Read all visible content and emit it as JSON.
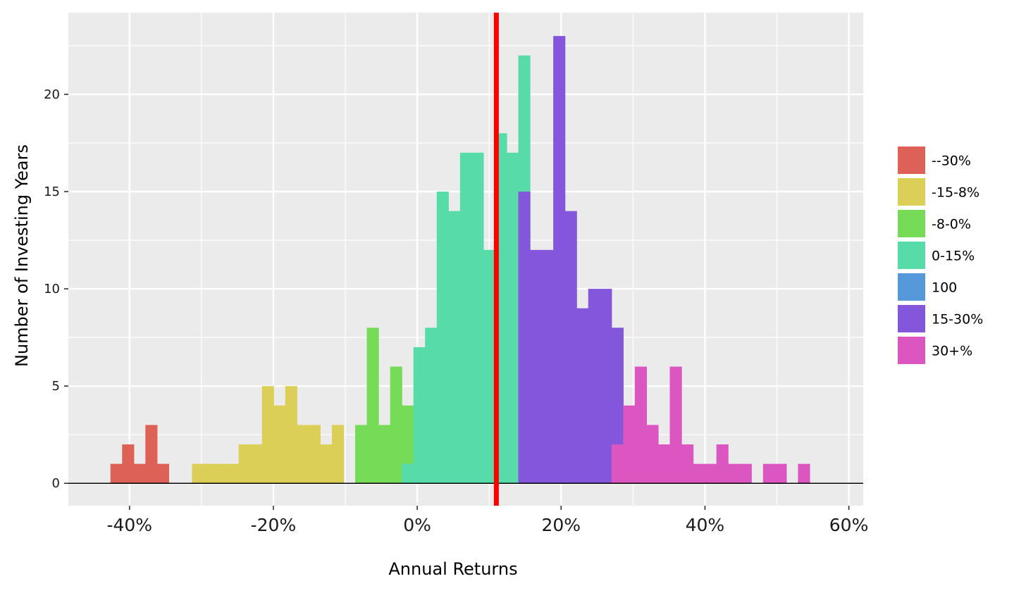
{
  "chart_data": {
    "type": "bar",
    "subtype": "stacked-histogram",
    "xlabel": "Annual Returns",
    "ylabel": "Number of Investing Years",
    "x_range": [
      -48.5,
      62
    ],
    "y_range": [
      -1.15,
      24.2
    ],
    "x_ticks": [
      {
        "value": -40,
        "label": "-40%"
      },
      {
        "value": -20,
        "label": "-20%"
      },
      {
        "value": 0,
        "label": "0%"
      },
      {
        "value": 20,
        "label": "20%"
      },
      {
        "value": 40,
        "label": "40%"
      },
      {
        "value": 60,
        "label": "60%"
      }
    ],
    "y_ticks": [
      {
        "value": 0,
        "label": "0"
      },
      {
        "value": 5,
        "label": "5"
      },
      {
        "value": 10,
        "label": "10"
      },
      {
        "value": 15,
        "label": "15"
      },
      {
        "value": 20,
        "label": "20"
      }
    ],
    "grid": true,
    "background": "#EBEBEB",
    "bin_width": 1.62,
    "first_bin_left": -42.65,
    "reference_line": {
      "x": 11.0,
      "color": "#FF0000"
    },
    "legend_position": "right",
    "series": [
      {
        "name": "--30%",
        "color": "#DD6157",
        "start_bin": 0,
        "values": [
          1,
          2,
          1,
          3,
          1
        ]
      },
      {
        "name": "-15-8%",
        "color": "#DBCF58",
        "start_bin": 7,
        "values": [
          1,
          1,
          1,
          1,
          2,
          2,
          5,
          4,
          5,
          3,
          3,
          2,
          3
        ]
      },
      {
        "name": "-8-0%",
        "color": "#76DB57",
        "start_bin": 21,
        "values": [
          3,
          8,
          3,
          6,
          4
        ]
      },
      {
        "name": "0-15%",
        "color": "#56DBA9",
        "start_bin": 25,
        "values": [
          1,
          7,
          8,
          15,
          14,
          17,
          17,
          12,
          18,
          17,
          22
        ]
      },
      {
        "name": "100",
        "color": "#5699DB",
        "start_bin": 0,
        "values": []
      },
      {
        "name": "15-30%",
        "color": "#8456DB",
        "start_bin": 35,
        "values": [
          15,
          12,
          12,
          23,
          14,
          9,
          10,
          10,
          8
        ]
      },
      {
        "name": "30+%",
        "color": "#DB56C1",
        "start_bin": 43,
        "values": [
          2,
          4,
          6,
          3,
          2,
          6,
          2,
          1,
          1,
          2,
          1,
          1,
          0,
          1,
          1,
          0,
          1
        ]
      }
    ]
  }
}
